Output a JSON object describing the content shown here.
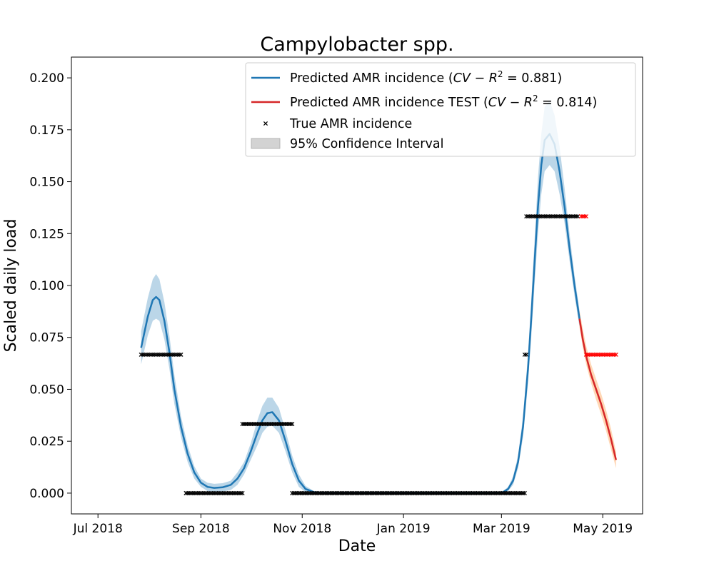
{
  "chart_data": {
    "type": "line",
    "title": "Campylobacter spp.",
    "xlabel": "Date",
    "ylabel": "Scaled daily load",
    "xlim": [
      "2018-06-15",
      "2019-05-25"
    ],
    "ylim": [
      -0.01,
      0.21
    ],
    "x_ticks": [
      {
        "date": "2018-07-01",
        "label": "Jul 2018"
      },
      {
        "date": "2018-09-01",
        "label": "Sep 2018"
      },
      {
        "date": "2018-11-01",
        "label": "Nov 2018"
      },
      {
        "date": "2019-01-01",
        "label": "Jan 2019"
      },
      {
        "date": "2019-03-01",
        "label": "Mar 2019"
      },
      {
        "date": "2019-05-01",
        "label": "May 2019"
      }
    ],
    "y_ticks": [
      0.0,
      0.025,
      0.05,
      0.075,
      0.1,
      0.125,
      0.15,
      0.175,
      0.2
    ],
    "y_tick_labels": [
      "0.000",
      "0.025",
      "0.050",
      "0.075",
      "0.100",
      "0.125",
      "0.150",
      "0.175",
      "0.200"
    ],
    "grid": false,
    "legend_position": "top-right",
    "legend": [
      {
        "kind": "line",
        "color": "#1f77b4",
        "label": "Predicted AMR incidence (CV − R² = 0.881)",
        "text": "Predicted AMR incidence (",
        "r2": "0.881"
      },
      {
        "kind": "line",
        "color": "#d62728",
        "label": "Predicted AMR incidence TEST (CV − R² = 0.814)",
        "text": "Predicted AMR incidence TEST (",
        "r2": "0.814"
      },
      {
        "kind": "marker",
        "color": "#000000",
        "label": "True AMR incidence"
      },
      {
        "kind": "patch",
        "color": "#d3d3d3",
        "label": "95% Confidence Interval"
      }
    ],
    "series": [
      {
        "name": "Predicted AMR incidence",
        "color": "#1f77b4",
        "band_color": "#1f77b4",
        "x": [
          "2018-07-27",
          "2018-07-31",
          "2018-08-03",
          "2018-08-05",
          "2018-08-07",
          "2018-08-10",
          "2018-08-13",
          "2018-08-16",
          "2018-08-20",
          "2018-08-24",
          "2018-08-28",
          "2018-09-01",
          "2018-09-05",
          "2018-09-09",
          "2018-09-14",
          "2018-09-19",
          "2018-09-23",
          "2018-09-27",
          "2018-10-01",
          "2018-10-05",
          "2018-10-08",
          "2018-10-11",
          "2018-10-14",
          "2018-10-18",
          "2018-10-22",
          "2018-10-26",
          "2018-10-30",
          "2018-11-03",
          "2018-11-08",
          "2018-11-15",
          "2018-11-25",
          "2018-12-10",
          "2019-01-01",
          "2019-01-20",
          "2019-02-10",
          "2019-02-25",
          "2019-03-02",
          "2019-03-05",
          "2019-03-08",
          "2019-03-11",
          "2019-03-14",
          "2019-03-17",
          "2019-03-19",
          "2019-03-21",
          "2019-03-23",
          "2019-03-25",
          "2019-03-27",
          "2019-03-30",
          "2019-04-02",
          "2019-04-05",
          "2019-04-08",
          "2019-04-11",
          "2019-04-14",
          "2019-04-17"
        ],
        "y": [
          0.07,
          0.085,
          0.093,
          0.0945,
          0.093,
          0.083,
          0.068,
          0.05,
          0.032,
          0.019,
          0.01,
          0.005,
          0.003,
          0.0025,
          0.0028,
          0.004,
          0.007,
          0.012,
          0.02,
          0.029,
          0.035,
          0.0385,
          0.039,
          0.035,
          0.025,
          0.014,
          0.006,
          0.002,
          0.0005,
          0.0,
          0.0,
          0.0,
          0.0,
          0.0,
          0.0,
          0.0,
          0.0005,
          0.002,
          0.006,
          0.015,
          0.032,
          0.06,
          0.085,
          0.112,
          0.138,
          0.158,
          0.17,
          0.173,
          0.168,
          0.155,
          0.138,
          0.118,
          0.1,
          0.084
        ],
        "ci_lower": [
          0.062,
          0.076,
          0.083,
          0.084,
          0.083,
          0.074,
          0.06,
          0.043,
          0.027,
          0.015,
          0.007,
          0.003,
          0.001,
          0.0005,
          0.0008,
          0.0015,
          0.004,
          0.009,
          0.016,
          0.023,
          0.029,
          0.032,
          0.0325,
          0.029,
          0.02,
          0.01,
          0.003,
          0.0005,
          0.0,
          0.0,
          0.0,
          0.0,
          0.0,
          0.0,
          0.0,
          0.0,
          0.0,
          0.001,
          0.004,
          0.012,
          0.027,
          0.053,
          0.076,
          0.101,
          0.125,
          0.144,
          0.155,
          0.158,
          0.155,
          0.144,
          0.13,
          0.112,
          0.095,
          0.08
        ],
        "ci_upper": [
          0.078,
          0.094,
          0.103,
          0.1055,
          0.103,
          0.092,
          0.076,
          0.057,
          0.037,
          0.023,
          0.013,
          0.007,
          0.005,
          0.0045,
          0.0048,
          0.006,
          0.01,
          0.015,
          0.024,
          0.035,
          0.042,
          0.046,
          0.046,
          0.041,
          0.03,
          0.018,
          0.009,
          0.0035,
          0.001,
          0.0002,
          0.0,
          0.0,
          0.0,
          0.0,
          0.0,
          0.0,
          0.001,
          0.003,
          0.008,
          0.018,
          0.037,
          0.067,
          0.094,
          0.123,
          0.152,
          0.173,
          0.186,
          0.189,
          0.182,
          0.167,
          0.147,
          0.125,
          0.105,
          0.088
        ]
      },
      {
        "name": "Predicted AMR incidence TEST",
        "color": "#d62728",
        "band_color": "#ff7f0e",
        "x": [
          "2019-04-17",
          "2019-04-19",
          "2019-04-21",
          "2019-04-24",
          "2019-04-27",
          "2019-04-30",
          "2019-05-03",
          "2019-05-06",
          "2019-05-09"
        ],
        "y": [
          0.084,
          0.074,
          0.066,
          0.057,
          0.05,
          0.043,
          0.035,
          0.026,
          0.016
        ],
        "ci_lower": [
          0.08,
          0.07,
          0.062,
          0.053,
          0.045,
          0.038,
          0.03,
          0.021,
          0.012
        ],
        "ci_upper": [
          0.088,
          0.079,
          0.071,
          0.062,
          0.055,
          0.048,
          0.04,
          0.031,
          0.02
        ]
      }
    ],
    "true_points": [
      {
        "name": "True AMR incidence",
        "color": "#000000",
        "segments": [
          {
            "start": "2018-07-27",
            "end": "2018-08-20",
            "y": 0.0667
          },
          {
            "start": "2018-08-23",
            "end": "2018-09-26",
            "y": 0.0
          },
          {
            "start": "2018-09-26",
            "end": "2018-10-26",
            "y": 0.0333
          },
          {
            "start": "2018-10-26",
            "end": "2019-03-15",
            "y": 0.0
          },
          {
            "start": "2019-03-15",
            "end": "2019-03-16",
            "y": 0.0667
          },
          {
            "start": "2019-03-16",
            "end": "2019-04-16",
            "y": 0.1333
          }
        ]
      },
      {
        "name": "True AMR incidence TEST",
        "color": "#ff0000",
        "segments": [
          {
            "start": "2019-04-18",
            "end": "2019-04-21",
            "y": 0.1333
          },
          {
            "start": "2019-04-21",
            "end": "2019-05-09",
            "y": 0.0667
          }
        ]
      }
    ]
  }
}
